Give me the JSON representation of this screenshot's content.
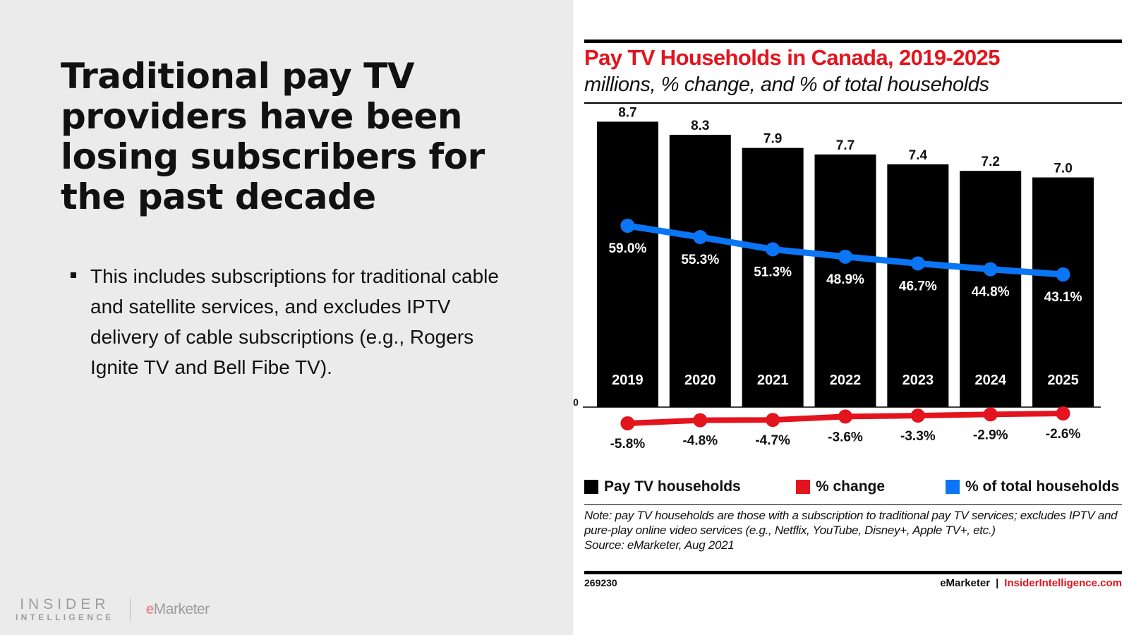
{
  "slide": {
    "title": "Traditional pay TV providers have been losing subscribers for the past decade",
    "bullets": [
      "This includes subscriptions for traditional cable and satellite services, and excludes IPTV delivery of cable subscriptions (e.g., Rogers Ignite TV and Bell Fibe TV)."
    ],
    "logo": {
      "insider_line1": "INSIDER",
      "insider_line2": "INTELLIGENCE",
      "emarketer_e": "e",
      "emarketer_rest": "Marketer"
    }
  },
  "chart_data": {
    "type": "bar",
    "title": "Pay TV Households in Canada, 2019-2025",
    "subtitle": "millions, % change, and % of total households",
    "categories": [
      "2019",
      "2020",
      "2021",
      "2022",
      "2023",
      "2024",
      "2025"
    ],
    "series": [
      {
        "name": "Pay TV households",
        "type": "bar",
        "unit": "millions",
        "color": "#000000",
        "values": [
          8.7,
          8.3,
          7.9,
          7.7,
          7.4,
          7.2,
          7.0
        ],
        "labels": [
          "8.7",
          "8.3",
          "7.9",
          "7.7",
          "7.4",
          "7.2",
          "7.0"
        ]
      },
      {
        "name": "% change",
        "type": "line",
        "unit": "%",
        "color": "#e3141e",
        "values": [
          -5.8,
          -4.8,
          -4.7,
          -3.6,
          -3.3,
          -2.9,
          -2.6
        ],
        "labels": [
          "-5.8%",
          "-4.8%",
          "-4.7%",
          "-3.6%",
          "-3.3%",
          "-2.9%",
          "-2.6%"
        ]
      },
      {
        "name": "% of total households",
        "type": "line",
        "unit": "%",
        "color": "#0a75f5",
        "values": [
          59.0,
          55.3,
          51.3,
          48.9,
          46.7,
          44.8,
          43.1
        ],
        "labels": [
          "59.0%",
          "55.3%",
          "51.3%",
          "48.9%",
          "46.7%",
          "44.8%",
          "43.1%"
        ]
      }
    ],
    "y_axis_labels": [
      "0"
    ],
    "ylim": [
      0,
      9
    ],
    "grid": false,
    "legend_position": "bottom",
    "legend": [
      "Pay TV households",
      "% change",
      "% of total households"
    ],
    "note": "Note: pay TV households are those with a subscription to traditional pay TV services; excludes IPTV and pure-play online video services (e.g., Netflix, YouTube, Disney+, Apple TV+, etc.)",
    "source": "Source: eMarketer, Aug 2021",
    "chart_id": "269230",
    "brand_left": "eMarketer",
    "brand_sep": "|",
    "brand_right": "InsiderIntelligence.com"
  }
}
